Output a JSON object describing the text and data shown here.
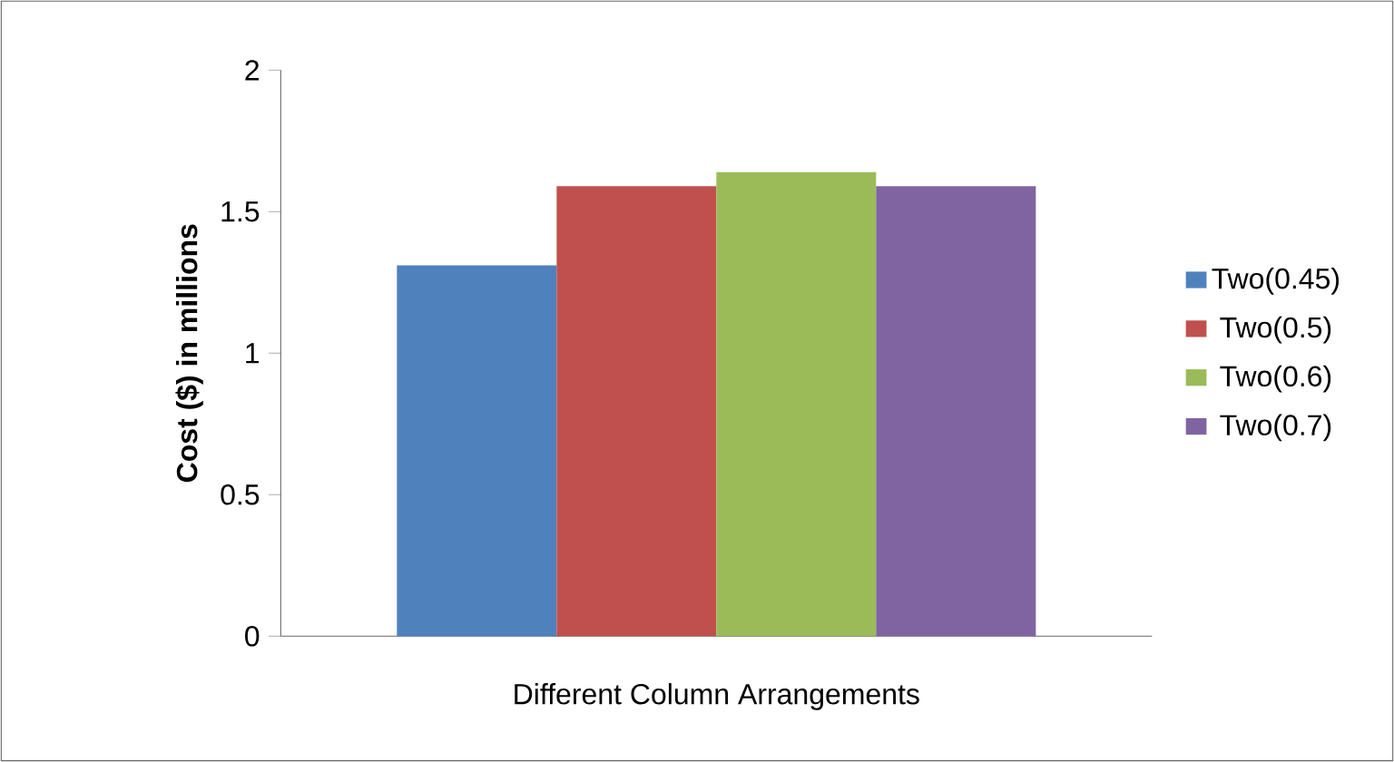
{
  "chart_data": {
    "type": "bar",
    "xlabel": "Different Column Arrangements",
    "ylabel": "Cost ($) in millions",
    "categories": [
      null
    ],
    "series": [
      {
        "name": "Two(0.45)",
        "color": "#4f81bd",
        "values": [
          1.31
        ]
      },
      {
        "name": "Two(0.5)",
        "color": "#c0504d",
        "values": [
          1.59
        ]
      },
      {
        "name": "Two(0.6)",
        "color": "#9bbb59",
        "values": [
          1.64
        ]
      },
      {
        "name": "Two(0.7)",
        "color": "#8064a2",
        "values": [
          1.59
        ]
      }
    ],
    "ylim": [
      0,
      2
    ],
    "yticks": [
      0,
      0.5,
      1,
      1.5,
      2
    ],
    "grid": false,
    "legend": "right"
  }
}
